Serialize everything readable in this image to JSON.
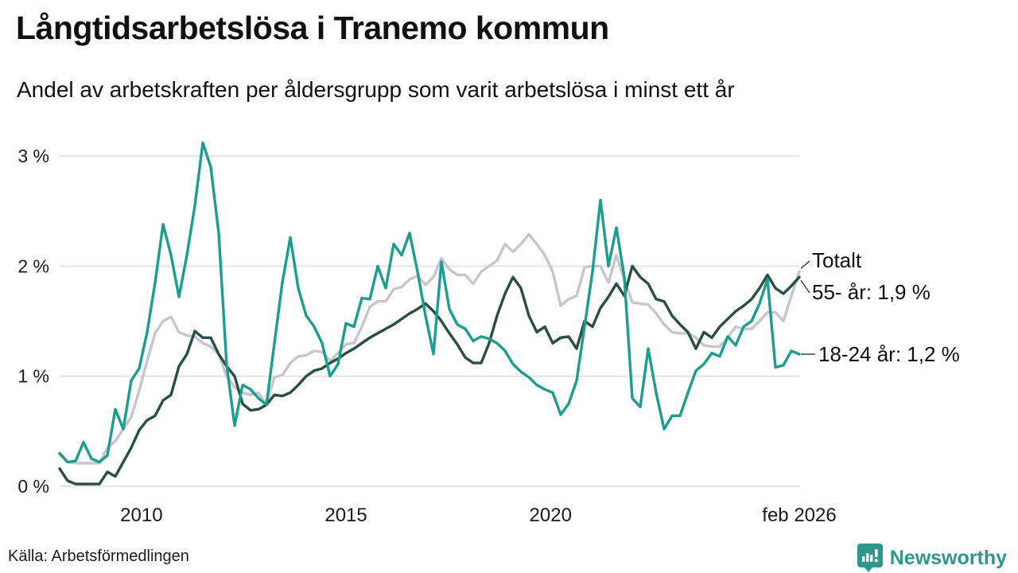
{
  "header": {
    "title": "Långtidsarbetslösa i Tranemo kommun",
    "subtitle": "Andel av arbetskraften per åldersgrupp som varit arbetslösa i minst ett år"
  },
  "footer": {
    "source": "Källa: Arbetsförmedlingen",
    "brand": "Newsworthy",
    "brand_color": "#2f968b"
  },
  "chart_data": {
    "type": "line",
    "title": "Långtidsarbetslösa i Tranemo kommun",
    "xlabel": "",
    "ylabel": "",
    "x_start": 2008.0,
    "x_end": 2026.08,
    "ylim": [
      0,
      3.3
    ],
    "grid": "horizontal",
    "legend_position": "end-of-line-labels",
    "yticks": [
      {
        "value": 0,
        "label": "0 %"
      },
      {
        "value": 1,
        "label": "1 %"
      },
      {
        "value": 2,
        "label": "2 %"
      },
      {
        "value": 3,
        "label": "3 %"
      }
    ],
    "xticks": [
      {
        "value": 2010,
        "label": "2010"
      },
      {
        "value": 2015,
        "label": "2015"
      },
      {
        "value": 2020,
        "label": "2020"
      },
      {
        "value": 2026.08,
        "label": "feb 2026"
      }
    ],
    "colors": {
      "gridline": "#e5e5e8",
      "tick_text": "#1a1a1a",
      "connector": "#333333"
    },
    "series": [
      {
        "name": "Totalt",
        "end_label": "Totalt",
        "color": "#c7c5d2",
        "values": [
          0.29,
          0.22,
          0.21,
          0.21,
          0.21,
          0.21,
          0.35,
          0.41,
          0.52,
          0.63,
          0.87,
          1.14,
          1.39,
          1.5,
          1.54,
          1.4,
          1.37,
          1.36,
          1.3,
          1.27,
          1.2,
          1.0,
          0.9,
          0.85,
          0.83,
          0.85,
          0.74,
          0.99,
          1.01,
          1.12,
          1.18,
          1.19,
          1.23,
          1.22,
          1.14,
          1.21,
          1.29,
          1.3,
          1.45,
          1.63,
          1.68,
          1.68,
          1.79,
          1.81,
          1.88,
          1.91,
          1.83,
          1.9,
          2.07,
          1.97,
          1.92,
          1.92,
          1.84,
          1.95,
          2.0,
          2.05,
          2.2,
          2.13,
          2.2,
          2.29,
          2.2,
          2.1,
          1.95,
          1.64,
          1.7,
          1.73,
          1.99,
          2.0,
          2.0,
          1.85,
          2.1,
          1.88,
          1.67,
          1.66,
          1.65,
          1.57,
          1.47,
          1.4,
          1.39,
          1.39,
          1.35,
          1.28,
          1.27,
          1.27,
          1.35,
          1.45,
          1.43,
          1.43,
          1.5,
          1.58,
          1.58,
          1.5,
          1.73,
          1.95
        ]
      },
      {
        "name": "55- år",
        "end_label": "55- år: 1,9 %",
        "color": "#2a4e44",
        "values": [
          0.16,
          0.05,
          0.02,
          0.02,
          0.02,
          0.02,
          0.13,
          0.09,
          0.22,
          0.35,
          0.51,
          0.6,
          0.64,
          0.78,
          0.83,
          1.09,
          1.2,
          1.41,
          1.35,
          1.35,
          1.2,
          1.09,
          1.0,
          0.75,
          0.69,
          0.7,
          0.74,
          0.83,
          0.82,
          0.85,
          0.92,
          1.0,
          1.05,
          1.07,
          1.12,
          1.16,
          1.21,
          1.25,
          1.3,
          1.35,
          1.39,
          1.43,
          1.47,
          1.52,
          1.57,
          1.61,
          1.66,
          1.59,
          1.5,
          1.39,
          1.29,
          1.17,
          1.12,
          1.12,
          1.3,
          1.55,
          1.75,
          1.9,
          1.8,
          1.55,
          1.4,
          1.45,
          1.3,
          1.35,
          1.36,
          1.25,
          1.5,
          1.45,
          1.62,
          1.72,
          1.84,
          1.73,
          2.0,
          1.9,
          1.84,
          1.7,
          1.68,
          1.55,
          1.47,
          1.4,
          1.25,
          1.4,
          1.35,
          1.45,
          1.52,
          1.59,
          1.64,
          1.7,
          1.8,
          1.92,
          1.8,
          1.75,
          1.82,
          1.9
        ]
      },
      {
        "name": "18-24 år",
        "end_label": "18-24 år: 1,2 %",
        "color": "#1b9e8e",
        "values": [
          0.3,
          0.22,
          0.23,
          0.4,
          0.25,
          0.22,
          0.28,
          0.7,
          0.52,
          0.96,
          1.07,
          1.4,
          1.85,
          2.38,
          2.1,
          1.72,
          2.1,
          2.55,
          3.12,
          2.9,
          2.3,
          1.1,
          0.55,
          0.92,
          0.88,
          0.8,
          0.74,
          1.3,
          1.85,
          2.26,
          1.8,
          1.55,
          1.45,
          1.3,
          1.0,
          1.11,
          1.48,
          1.45,
          1.71,
          1.7,
          2.0,
          1.8,
          2.2,
          2.1,
          2.3,
          1.95,
          1.55,
          1.2,
          2.04,
          1.61,
          1.47,
          1.43,
          1.32,
          1.36,
          1.34,
          1.3,
          1.23,
          1.11,
          1.04,
          0.99,
          0.92,
          0.88,
          0.85,
          0.65,
          0.75,
          0.96,
          1.45,
          1.95,
          2.6,
          2.0,
          2.35,
          1.9,
          0.8,
          0.72,
          1.25,
          0.85,
          0.52,
          0.64,
          0.64,
          0.85,
          1.05,
          1.11,
          1.21,
          1.18,
          1.36,
          1.28,
          1.45,
          1.5,
          1.66,
          1.88,
          1.08,
          1.1,
          1.23,
          1.2
        ]
      }
    ]
  }
}
